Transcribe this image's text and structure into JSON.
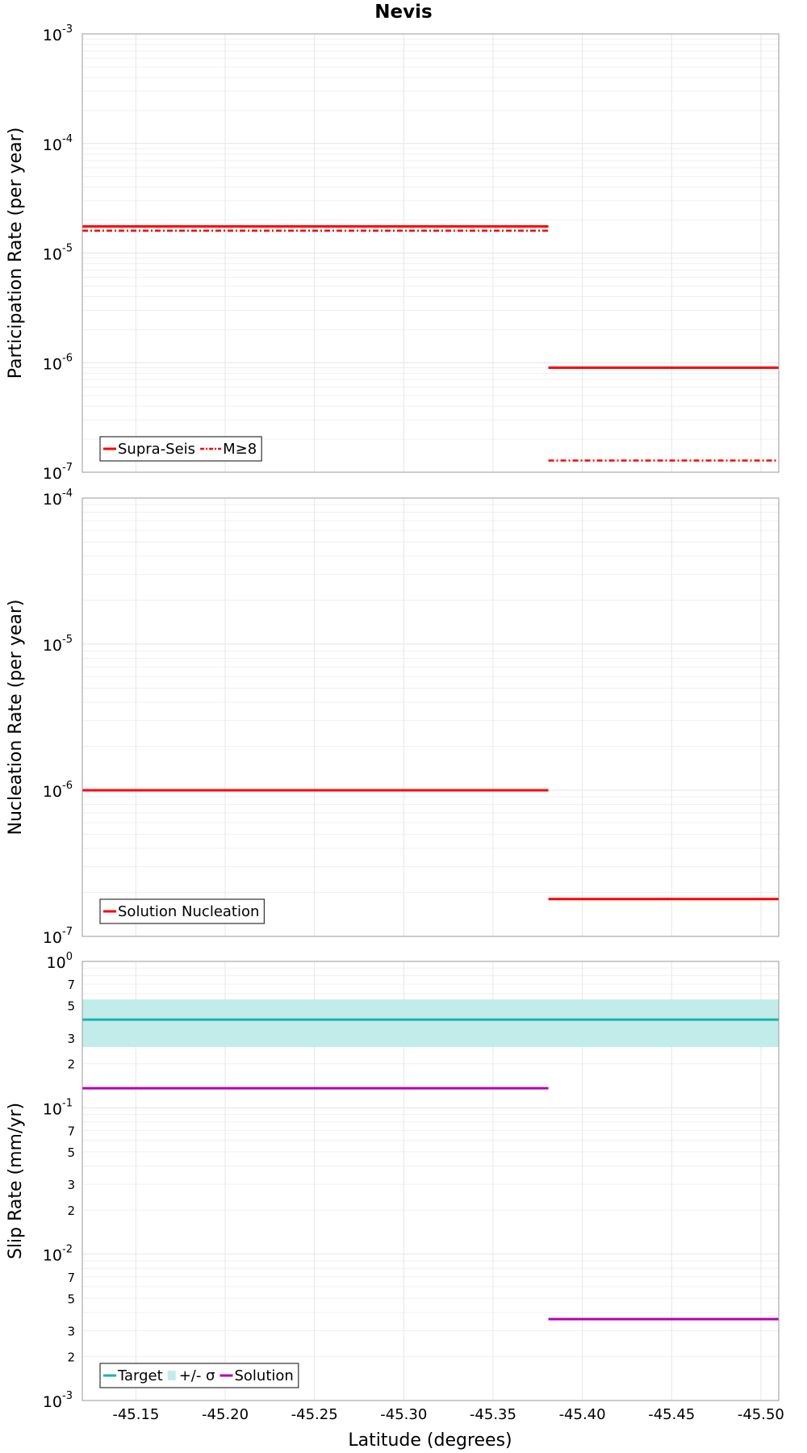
{
  "title": "Nevis",
  "x_axis": {
    "label": "Latitude (degrees)",
    "min": -45.12,
    "max": -45.51,
    "ticks": [
      -45.15,
      -45.2,
      -45.25,
      -45.3,
      -45.35,
      -45.4,
      -45.45,
      -45.5
    ],
    "tick_labels": [
      "-45.15",
      "-45.20",
      "-45.25",
      "-45.30",
      "-45.35",
      "-45.40",
      "-45.45",
      "-45.50"
    ]
  },
  "colors": {
    "red": "#ff0000",
    "teal": "#1ab3aa",
    "teal_band": "#c2ecea",
    "magenta": "#b300b3"
  },
  "chart_data": [
    {
      "type": "line",
      "ylabel": "Participation Rate (per year)",
      "yscale": "log",
      "ylim": [
        1e-07,
        0.001
      ],
      "yticks": [
        {
          "value": 0.001,
          "base": "10",
          "exp": "-3"
        },
        {
          "value": 0.0001,
          "base": "10",
          "exp": "-4"
        },
        {
          "value": 1e-05,
          "base": "10",
          "exp": "-5"
        },
        {
          "value": 1e-06,
          "base": "10",
          "exp": "-6"
        },
        {
          "value": 1e-07,
          "base": "10",
          "exp": "-7"
        }
      ],
      "legend_position": "bottom-left",
      "series": [
        {
          "name": "Supra-Seis",
          "style": "solid",
          "color": "#ff0000",
          "segments": [
            {
              "x": [
                -45.12,
                -45.381
              ],
              "y": 1.75e-05
            },
            {
              "x": [
                -45.381,
                -45.51
              ],
              "y": 9e-07
            }
          ]
        },
        {
          "name": "M≥8",
          "style": "dashdot",
          "color": "#ff0000",
          "segments": [
            {
              "x": [
                -45.12,
                -45.381
              ],
              "y": 1.6e-05
            },
            {
              "x": [
                -45.381,
                -45.51
              ],
              "y": 1.28e-07
            }
          ]
        }
      ]
    },
    {
      "type": "line",
      "ylabel": "Nucleation Rate (per year)",
      "yscale": "log",
      "ylim": [
        1e-07,
        0.0001
      ],
      "yticks": [
        {
          "value": 0.0001,
          "base": "10",
          "exp": "-4"
        },
        {
          "value": 1e-05,
          "base": "10",
          "exp": "-5"
        },
        {
          "value": 1e-06,
          "base": "10",
          "exp": "-6"
        },
        {
          "value": 1e-07,
          "base": "10",
          "exp": "-7"
        }
      ],
      "legend_position": "bottom-left",
      "series": [
        {
          "name": "Solution Nucleation",
          "style": "solid",
          "color": "#ff0000",
          "segments": [
            {
              "x": [
                -45.12,
                -45.381
              ],
              "y": 1e-06
            },
            {
              "x": [
                -45.381,
                -45.51
              ],
              "y": 1.8e-07
            }
          ]
        }
      ]
    },
    {
      "type": "line",
      "ylabel": "Slip Rate (mm/yr)",
      "yscale": "log",
      "ylim": [
        0.001,
        1
      ],
      "yticks": [
        {
          "value": 1,
          "base": "10",
          "exp": "0"
        },
        {
          "value": 0.1,
          "base": "10",
          "exp": "-1"
        },
        {
          "value": 0.01,
          "base": "10",
          "exp": "-2"
        },
        {
          "value": 0.001,
          "base": "10",
          "exp": "-3"
        }
      ],
      "minor_ticks": [
        {
          "value": 0.7,
          "label": "7"
        },
        {
          "value": 0.5,
          "label": "5"
        },
        {
          "value": 0.3,
          "label": "3"
        },
        {
          "value": 0.2,
          "label": "2"
        },
        {
          "value": 0.07,
          "label": "7"
        },
        {
          "value": 0.05,
          "label": "5"
        },
        {
          "value": 0.03,
          "label": "3"
        },
        {
          "value": 0.02,
          "label": "2"
        },
        {
          "value": 0.007,
          "label": "7"
        },
        {
          "value": 0.005,
          "label": "5"
        },
        {
          "value": 0.003,
          "label": "3"
        },
        {
          "value": 0.002,
          "label": "2"
        }
      ],
      "legend_position": "bottom-left",
      "band": {
        "name": "+/- σ",
        "color": "#c2ecea",
        "y_low": 0.26,
        "y_high": 0.55,
        "x": [
          -45.12,
          -45.51
        ]
      },
      "series": [
        {
          "name": "Target",
          "style": "solid",
          "color": "#1ab3aa",
          "segments": [
            {
              "x": [
                -45.12,
                -45.51
              ],
              "y": 0.4
            }
          ]
        },
        {
          "name": "Solution",
          "style": "solid",
          "color": "#b300b3",
          "segments": [
            {
              "x": [
                -45.12,
                -45.381
              ],
              "y": 0.136
            },
            {
              "x": [
                -45.381,
                -45.51
              ],
              "y": 0.0036
            }
          ]
        }
      ]
    }
  ]
}
